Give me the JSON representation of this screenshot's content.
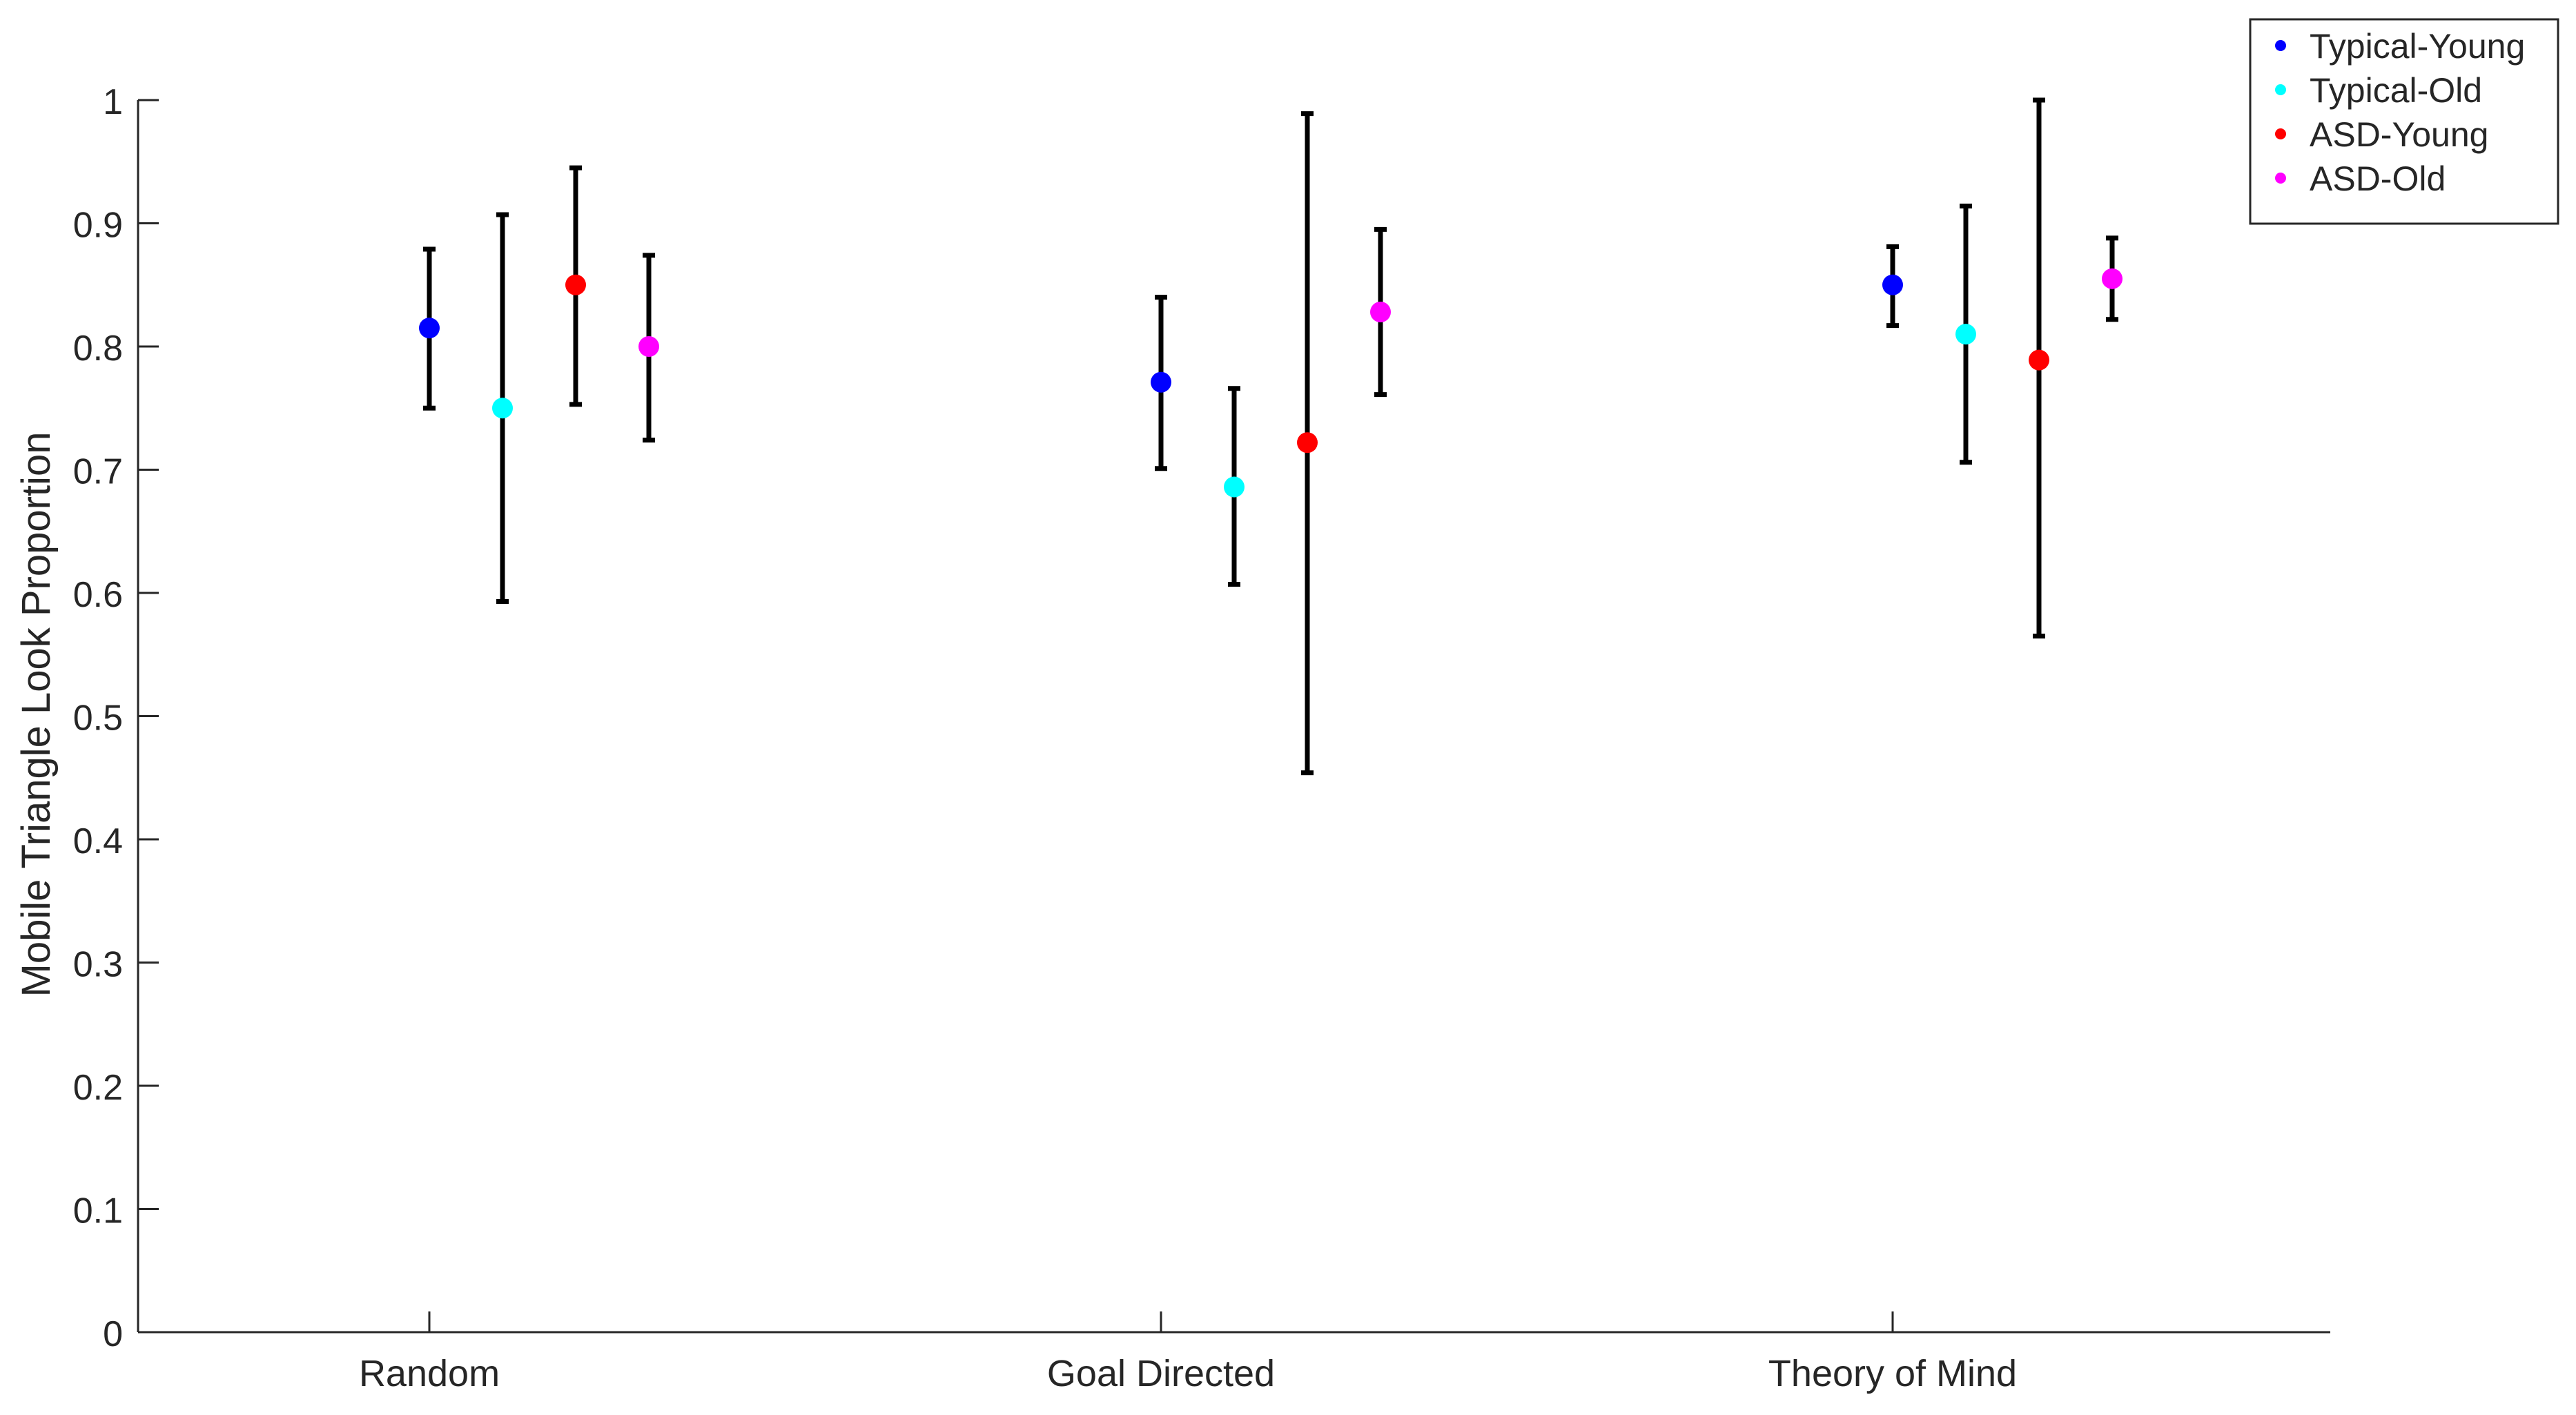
{
  "chart_data": {
    "type": "scatter",
    "title": "",
    "xlabel": "",
    "ylabel": "Mobile Triangle Look Proportion",
    "categories": [
      "Random",
      "Goal Directed",
      "Theory of Mind"
    ],
    "ylim": [
      0,
      1
    ],
    "yticks": [
      "0",
      "0.1",
      "0.2",
      "0.3",
      "0.4",
      "0.5",
      "0.6",
      "0.7",
      "0.8",
      "0.9",
      "1"
    ],
    "grid": false,
    "legend_position": "top-right",
    "series": [
      {
        "name": "Typical-Young",
        "color": "#0000ff",
        "values": [
          0.815,
          0.771,
          0.85
        ],
        "error_low": [
          0.75,
          0.701,
          0.817
        ],
        "error_high": [
          0.879,
          0.84,
          0.881
        ]
      },
      {
        "name": "Typical-Old",
        "color": "#00ffff",
        "values": [
          0.75,
          0.686,
          0.81
        ],
        "error_low": [
          0.593,
          0.607,
          0.706
        ],
        "error_high": [
          0.907,
          0.766,
          0.914
        ]
      },
      {
        "name": "ASD-Young",
        "color": "#ff0000",
        "values": [
          0.85,
          0.722,
          0.789
        ],
        "error_low": [
          0.753,
          0.454,
          0.565
        ],
        "error_high": [
          0.945,
          0.989,
          1.0
        ]
      },
      {
        "name": "ASD-Old",
        "color": "#ff00ff",
        "values": [
          0.8,
          0.828,
          0.855
        ],
        "error_low": [
          0.724,
          0.761,
          0.822
        ],
        "error_high": [
          0.874,
          0.895,
          0.888
        ]
      }
    ]
  }
}
